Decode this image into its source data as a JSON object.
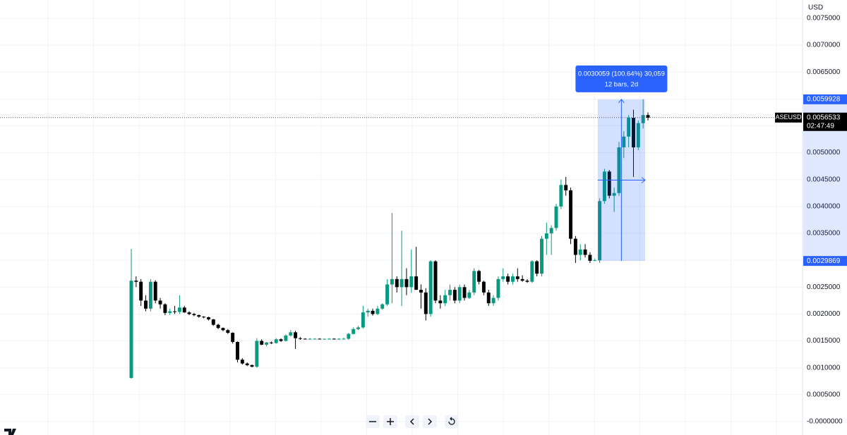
{
  "chart_data": {
    "type": "candlestick",
    "currency": "USD",
    "symbol": "ASEUSD",
    "open": [
      0.00081,
      0.00262,
      0.0026,
      0.00225,
      0.0021,
      0.0026,
      0.00225,
      0.00218,
      0.00202,
      0.00205,
      0.00204,
      0.00212,
      0.00203,
      0.002,
      0.00198,
      0.00195,
      0.00194,
      0.0019,
      0.0018,
      0.00174,
      0.0017,
      0.00165,
      0.00148,
      0.00115,
      0.00108,
      0.00105,
      0.00102,
      0.0015,
      0.00143,
      0.00147,
      0.00146,
      0.00153,
      0.0015,
      0.0016,
      0.00166,
      0.00155,
      0.00154,
      0.00153,
      0.00154,
      0.00154,
      0.00153,
      0.00154,
      0.00154,
      0.00153,
      0.00154,
      0.00154,
      0.00163,
      0.00172,
      0.00175,
      0.00203,
      0.00206,
      0.002,
      0.0021,
      0.00218,
      0.00255,
      0.00265,
      0.0025,
      0.00265,
      0.0025,
      0.0027,
      0.00245,
      0.0024,
      0.002,
      0.00298,
      0.00225,
      0.0022,
      0.00235,
      0.00245,
      0.00225,
      0.0025,
      0.0023,
      0.0024,
      0.0028,
      0.0026,
      0.0024,
      0.0022,
      0.0023,
      0.00265,
      0.0027,
      0.0026,
      0.0027,
      0.00265,
      0.00262,
      0.0026,
      0.00298,
      0.00275,
      0.0034,
      0.0035,
      0.0036,
      0.004,
      0.0044,
      0.0043,
      0.0034,
      0.0031,
      0.0032,
      0.0031,
      0.00299,
      0.003,
      0.0041,
      0.00465,
      0.0042,
      0.00425,
      0.0051,
      0.0053,
      0.00565,
      0.0051,
      0.00555,
      0.0057
    ],
    "high": [
      0.00321,
      0.0027,
      0.00265,
      0.00235,
      0.00265,
      0.00263,
      0.0023,
      0.0022,
      0.0021,
      0.00215,
      0.00235,
      0.00215,
      0.00205,
      0.00202,
      0.00199,
      0.00196,
      0.00195,
      0.00191,
      0.00182,
      0.00175,
      0.00172,
      0.00166,
      0.00149,
      0.00118,
      0.0011,
      0.00106,
      0.00155,
      0.00153,
      0.00148,
      0.00149,
      0.00155,
      0.00155,
      0.00162,
      0.0017,
      0.00169,
      0.00157,
      0.00155,
      0.00155,
      0.00155,
      0.00155,
      0.00154,
      0.00155,
      0.00155,
      0.00155,
      0.00156,
      0.00165,
      0.00175,
      0.00178,
      0.00215,
      0.0021,
      0.0021,
      0.00215,
      0.0022,
      0.00265,
      0.00388,
      0.0027,
      0.00355,
      0.00285,
      0.0032,
      0.00325,
      0.00255,
      0.00248,
      0.003,
      0.003,
      0.00235,
      0.00245,
      0.00255,
      0.0025,
      0.00255,
      0.00255,
      0.00245,
      0.00285,
      0.00282,
      0.00262,
      0.00245,
      0.00235,
      0.0027,
      0.00285,
      0.00275,
      0.00275,
      0.00285,
      0.00272,
      0.00265,
      0.003,
      0.003,
      0.00345,
      0.0037,
      0.00365,
      0.00405,
      0.0045,
      0.00455,
      0.00435,
      0.00345,
      0.0033,
      0.0033,
      0.00315,
      0.00303,
      0.00415,
      0.0047,
      0.00468,
      0.00435,
      0.0052,
      0.0054,
      0.0057,
      0.0058,
      0.0056,
      0.0059928,
      0.00575
    ],
    "low": [
      0.0008,
      0.0025,
      0.00215,
      0.00205,
      0.00205,
      0.0022,
      0.0021,
      0.00198,
      0.00198,
      0.002,
      0.002,
      0.00202,
      0.00198,
      0.00196,
      0.00193,
      0.00192,
      0.00188,
      0.00178,
      0.00172,
      0.00168,
      0.00163,
      0.00145,
      0.0011,
      0.00106,
      0.00103,
      0.00101,
      0.001,
      0.00142,
      0.0014,
      0.00144,
      0.00145,
      0.00148,
      0.00149,
      0.00158,
      0.00135,
      0.00152,
      0.00153,
      0.00152,
      0.00153,
      0.00153,
      0.00152,
      0.00153,
      0.00153,
      0.00152,
      0.00153,
      0.00152,
      0.00162,
      0.0017,
      0.00173,
      0.00195,
      0.00197,
      0.00198,
      0.00208,
      0.00215,
      0.0022,
      0.0024,
      0.00215,
      0.00235,
      0.0024,
      0.00245,
      0.0021,
      0.00188,
      0.00195,
      0.0022,
      0.0021,
      0.00215,
      0.00225,
      0.0022,
      0.0022,
      0.00225,
      0.00228,
      0.00235,
      0.00255,
      0.00235,
      0.00215,
      0.00215,
      0.00225,
      0.0026,
      0.00255,
      0.00255,
      0.0026,
      0.0026,
      0.00258,
      0.00258,
      0.0027,
      0.0027,
      0.0031,
      0.0031,
      0.00355,
      0.00395,
      0.0042,
      0.0033,
      0.00295,
      0.003,
      0.00305,
      0.00295,
      0.0029869,
      0.00295,
      0.00405,
      0.00415,
      0.0039,
      0.0042,
      0.0049,
      0.0051,
      0.00455,
      0.00505,
      0.00545,
      0.0056
    ],
    "close": [
      0.00262,
      0.0026,
      0.00225,
      0.0021,
      0.0026,
      0.00225,
      0.00218,
      0.00202,
      0.00205,
      0.00204,
      0.00212,
      0.00203,
      0.002,
      0.00198,
      0.00195,
      0.00194,
      0.0019,
      0.0018,
      0.00174,
      0.0017,
      0.00165,
      0.00148,
      0.00115,
      0.00108,
      0.00105,
      0.00102,
      0.0015,
      0.00143,
      0.00147,
      0.00146,
      0.00153,
      0.0015,
      0.0016,
      0.00166,
      0.00155,
      0.00154,
      0.00153,
      0.00154,
      0.00154,
      0.00153,
      0.00154,
      0.00154,
      0.00153,
      0.00154,
      0.00154,
      0.00163,
      0.00172,
      0.00175,
      0.00203,
      0.00206,
      0.002,
      0.0021,
      0.00218,
      0.00255,
      0.00265,
      0.0025,
      0.00265,
      0.0025,
      0.0027,
      0.00245,
      0.0024,
      0.002,
      0.00298,
      0.00225,
      0.0022,
      0.00235,
      0.00245,
      0.00225,
      0.0025,
      0.0023,
      0.0024,
      0.0028,
      0.0026,
      0.0024,
      0.0022,
      0.0023,
      0.00265,
      0.0027,
      0.0026,
      0.0027,
      0.00265,
      0.00262,
      0.0026,
      0.00298,
      0.00275,
      0.0034,
      0.0035,
      0.0036,
      0.004,
      0.0044,
      0.0043,
      0.0034,
      0.0031,
      0.0032,
      0.0031,
      0.00299,
      0.003,
      0.0041,
      0.00465,
      0.0042,
      0.00425,
      0.0051,
      0.0053,
      0.00565,
      0.0051,
      0.00555,
      0.0057,
      0.00565
    ],
    "up_color": "#089981",
    "down_color": "#000000",
    "ylim": [
      -0.00025,
      0.00784
    ],
    "yticks": [
      {
        "value": 0.0075,
        "label": "0.0075000"
      },
      {
        "value": 0.007,
        "label": "0.0070000"
      },
      {
        "value": 0.0065,
        "label": "0.0065000"
      },
      {
        "value": 0.006,
        "label": "0.0060000"
      },
      {
        "value": 0.0055,
        "label": "0.0055000"
      },
      {
        "value": 0.005,
        "label": "0.0050000"
      },
      {
        "value": 0.0045,
        "label": "0.0045000"
      },
      {
        "value": 0.004,
        "label": "0.0040000"
      },
      {
        "value": 0.0035,
        "label": "0.0035000"
      },
      {
        "value": 0.003,
        "label": "0.0030000"
      },
      {
        "value": 0.0025,
        "label": "0.0025000"
      },
      {
        "value": 0.002,
        "label": "0.0020000"
      },
      {
        "value": 0.0015,
        "label": "0.0015000"
      },
      {
        "value": 0.001,
        "label": "0.0010000"
      },
      {
        "value": 0.0005,
        "label": "0.0005000"
      },
      {
        "value": 0,
        "label": "-0.0000000"
      }
    ],
    "grid": true,
    "last_price": {
      "value": 0.0056533,
      "label": "0.0056533"
    },
    "countdown": "02:47:49",
    "measure": {
      "from": {
        "value": 0.0029869,
        "label": "0.0029869"
      },
      "to": {
        "value": 0.0059928,
        "label": "0.0059928"
      },
      "text": "0.0030059 (100.64%) 30,059",
      "detail": "12 bars, 2d",
      "color": "#2962ff"
    }
  }
}
